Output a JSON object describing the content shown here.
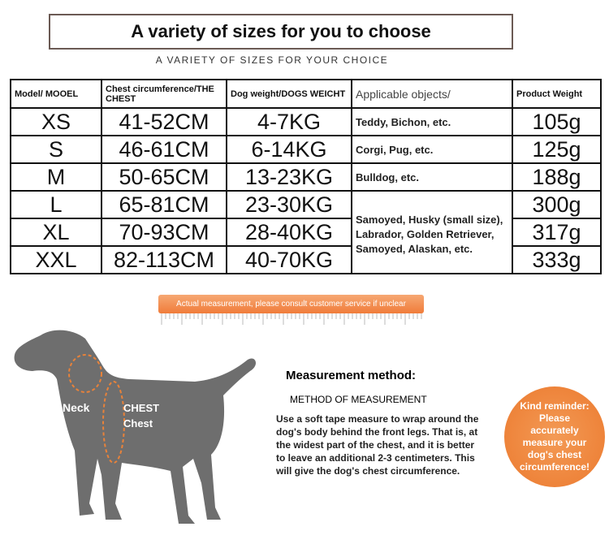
{
  "header": {
    "title": "A variety of sizes for you to choose",
    "subtitle": "A VARIETY OF SIZES FOR YOUR CHOICE"
  },
  "table": {
    "columns": [
      "Model/ MOOEL",
      "Chest circumference/THE CHEST",
      "Dog weight/DOGS WEICHT",
      "Applicable objects/",
      "Product Weight"
    ],
    "rows": [
      [
        "XS",
        "41-52CM",
        "4-7KG",
        "105g"
      ],
      [
        "S",
        "46-61CM",
        "6-14KG",
        "125g"
      ],
      [
        "M",
        "50-65CM",
        "13-23KG",
        "188g"
      ],
      [
        "L",
        "65-81CM",
        "23-30KG",
        "300g"
      ],
      [
        "XL",
        "70-93CM",
        "28-40KG",
        "317g"
      ],
      [
        "XXL",
        "82-113CM",
        "40-70KG",
        "333g"
      ]
    ],
    "applicable": [
      "Teddy, Bichon, etc.",
      "Corgi, Pug, etc.",
      "Bulldog, etc.",
      "Samoyed, Husky (small size), Labrador, Golden Retriever, Samoyed, Alaskan, etc."
    ]
  },
  "banner": "Actual measurement, please consult customer service if unclear",
  "diagram": {
    "neck": "Neck",
    "chest_upper": "CHEST",
    "chest_lower": "Chest"
  },
  "measurement": {
    "title": "Measurement method:",
    "subtitle": "METHOD OF MEASUREMENT",
    "body": "Use a soft tape measure to wrap around the dog's body behind the front legs. That is, at the widest part of the chest, and it is better to leave an additional 2-3 centimeters. This will give the dog's chest circumference."
  },
  "reminder": "Kind reminder: Please accurately measure your dog's chest circumference!"
}
